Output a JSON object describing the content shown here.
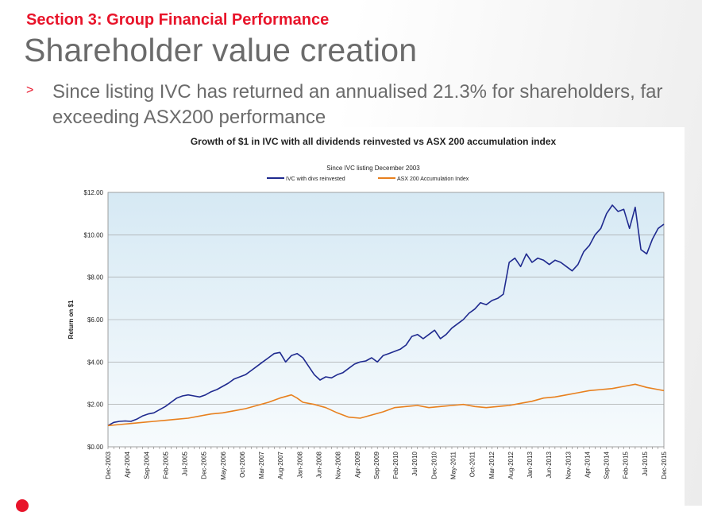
{
  "slide": {
    "section": "Section 3: Group Financial Performance",
    "title": "Shareholder value creation",
    "bullet": "Since listing IVC has returned an annualised 21.3% for shareholders, far exceeding ASX200 performance"
  },
  "colors": {
    "accent": "#e8142a",
    "ivc": "#1f2a8f",
    "asx": "#e8801e",
    "plot_bg_top": "#d6e9f4",
    "plot_bg_bottom": "#f7fbfd"
  },
  "chart_data": {
    "type": "line",
    "title": "Growth of $1 in IVC with all dividends reinvested vs ASX 200 accumulation index",
    "subtitle": "Since IVC listing December 2003",
    "ylabel": "Return on $1",
    "xlabel": "",
    "ylim": [
      0,
      12
    ],
    "yticks": [
      "$0.00",
      "$2.00",
      "$4.00",
      "$6.00",
      "$8.00",
      "$10.00",
      "$12.00"
    ],
    "grid": true,
    "legend": "top-center",
    "xtick_labels": [
      "Dec-2003",
      "Apr-2004",
      "Sep-2004",
      "Feb-2005",
      "Jul-2005",
      "Dec-2005",
      "May-2006",
      "Oct-2006",
      "Mar-2007",
      "Aug-2007",
      "Jan-2008",
      "Jun-2008",
      "Nov-2008",
      "Apr-2009",
      "Sep-2009",
      "Feb-2010",
      "Jul-2010",
      "Dec-2010",
      "May-2011",
      "Oct-2011",
      "Mar-2012",
      "Aug-2012",
      "Jan-2013",
      "Jun-2013",
      "Nov-2013",
      "Apr-2014",
      "Sep-2014",
      "Feb-2015",
      "Jul-2015",
      "Dec-2015"
    ],
    "series": [
      {
        "name": "IVC with divs reinvested",
        "points": [
          [
            0,
            1.0
          ],
          [
            1,
            1.15
          ],
          [
            2,
            1.2
          ],
          [
            3,
            1.22
          ],
          [
            4,
            1.2
          ],
          [
            5,
            1.3
          ],
          [
            6,
            1.45
          ],
          [
            7,
            1.55
          ],
          [
            8,
            1.6
          ],
          [
            9,
            1.75
          ],
          [
            10,
            1.9
          ],
          [
            11,
            2.1
          ],
          [
            12,
            2.3
          ],
          [
            13,
            2.4
          ],
          [
            14,
            2.45
          ],
          [
            15,
            2.4
          ],
          [
            16,
            2.35
          ],
          [
            17,
            2.45
          ],
          [
            18,
            2.6
          ],
          [
            19,
            2.7
          ],
          [
            20,
            2.85
          ],
          [
            21,
            3.0
          ],
          [
            22,
            3.2
          ],
          [
            23,
            3.3
          ],
          [
            24,
            3.4
          ],
          [
            25,
            3.6
          ],
          [
            26,
            3.8
          ],
          [
            27,
            4.0
          ],
          [
            28,
            4.2
          ],
          [
            29,
            4.4
          ],
          [
            30,
            4.45
          ],
          [
            31,
            4.0
          ],
          [
            32,
            4.3
          ],
          [
            33,
            4.4
          ],
          [
            34,
            4.2
          ],
          [
            35,
            3.8
          ],
          [
            36,
            3.4
          ],
          [
            37,
            3.15
          ],
          [
            38,
            3.3
          ],
          [
            39,
            3.25
          ],
          [
            40,
            3.4
          ],
          [
            41,
            3.5
          ],
          [
            42,
            3.7
          ],
          [
            43,
            3.9
          ],
          [
            44,
            4.0
          ],
          [
            45,
            4.05
          ],
          [
            46,
            4.2
          ],
          [
            47,
            4.0
          ],
          [
            48,
            4.3
          ],
          [
            49,
            4.4
          ],
          [
            50,
            4.5
          ],
          [
            51,
            4.6
          ],
          [
            52,
            4.8
          ],
          [
            53,
            5.2
          ],
          [
            54,
            5.3
          ],
          [
            55,
            5.1
          ],
          [
            56,
            5.3
          ],
          [
            57,
            5.5
          ],
          [
            58,
            5.1
          ],
          [
            59,
            5.3
          ],
          [
            60,
            5.6
          ],
          [
            61,
            5.8
          ],
          [
            62,
            6.0
          ],
          [
            63,
            6.3
          ],
          [
            64,
            6.5
          ],
          [
            65,
            6.8
          ],
          [
            66,
            6.7
          ],
          [
            67,
            6.9
          ],
          [
            68,
            7.0
          ],
          [
            69,
            7.2
          ],
          [
            70,
            8.7
          ],
          [
            71,
            8.9
          ],
          [
            72,
            8.5
          ],
          [
            73,
            9.1
          ],
          [
            74,
            8.7
          ],
          [
            75,
            8.9
          ],
          [
            76,
            8.8
          ],
          [
            77,
            8.6
          ],
          [
            78,
            8.8
          ],
          [
            79,
            8.7
          ],
          [
            80,
            8.5
          ],
          [
            81,
            8.3
          ],
          [
            82,
            8.6
          ],
          [
            83,
            9.2
          ],
          [
            84,
            9.5
          ],
          [
            85,
            10.0
          ],
          [
            86,
            10.3
          ],
          [
            87,
            11.0
          ],
          [
            88,
            11.4
          ],
          [
            89,
            11.1
          ],
          [
            90,
            11.2
          ],
          [
            91,
            10.3
          ],
          [
            92,
            11.3
          ],
          [
            93,
            9.3
          ],
          [
            94,
            9.1
          ],
          [
            95,
            9.8
          ],
          [
            96,
            10.3
          ],
          [
            97,
            10.5
          ]
        ]
      },
      {
        "name": "ASX 200 Accumulation Index",
        "points": [
          [
            0,
            1.0
          ],
          [
            2,
            1.05
          ],
          [
            4,
            1.1
          ],
          [
            6,
            1.15
          ],
          [
            8,
            1.2
          ],
          [
            10,
            1.25
          ],
          [
            12,
            1.3
          ],
          [
            14,
            1.35
          ],
          [
            16,
            1.45
          ],
          [
            18,
            1.55
          ],
          [
            20,
            1.6
          ],
          [
            22,
            1.7
          ],
          [
            24,
            1.8
          ],
          [
            26,
            1.95
          ],
          [
            28,
            2.1
          ],
          [
            30,
            2.3
          ],
          [
            32,
            2.45
          ],
          [
            33,
            2.3
          ],
          [
            34,
            2.1
          ],
          [
            36,
            2.0
          ],
          [
            38,
            1.85
          ],
          [
            40,
            1.6
          ],
          [
            42,
            1.4
          ],
          [
            44,
            1.35
          ],
          [
            46,
            1.5
          ],
          [
            48,
            1.65
          ],
          [
            50,
            1.85
          ],
          [
            52,
            1.9
          ],
          [
            54,
            1.95
          ],
          [
            56,
            1.85
          ],
          [
            58,
            1.9
          ],
          [
            60,
            1.95
          ],
          [
            62,
            2.0
          ],
          [
            64,
            1.9
          ],
          [
            66,
            1.85
          ],
          [
            68,
            1.9
          ],
          [
            70,
            1.95
          ],
          [
            72,
            2.05
          ],
          [
            74,
            2.15
          ],
          [
            76,
            2.3
          ],
          [
            78,
            2.35
          ],
          [
            80,
            2.45
          ],
          [
            82,
            2.55
          ],
          [
            84,
            2.65
          ],
          [
            86,
            2.7
          ],
          [
            88,
            2.75
          ],
          [
            90,
            2.85
          ],
          [
            92,
            2.95
          ],
          [
            94,
            2.8
          ],
          [
            96,
            2.7
          ],
          [
            97,
            2.65
          ]
        ]
      }
    ]
  }
}
